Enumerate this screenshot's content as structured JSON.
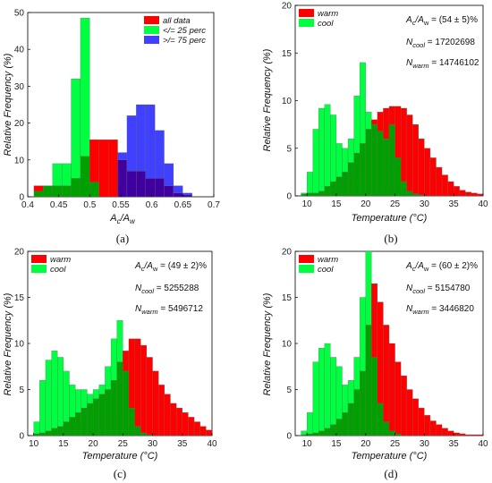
{
  "colors": {
    "red": "#ff0000",
    "green": "#00ff40",
    "blue": "#4040ff",
    "overlap_green_red": "#00a000",
    "overlap_blue_red": "#4000a0",
    "edge": "#666666"
  },
  "chart_data": [
    {
      "id": "a",
      "panel_label": "(a)",
      "type": "bar",
      "chart_subtype": "histogram-overlay",
      "xlabel": "A_c/A_w",
      "xlabel_html": [
        "A",
        "c",
        "/A",
        "w"
      ],
      "ylabel": "Relative Frequency (%)",
      "xlim": [
        0.4,
        0.7
      ],
      "ylim": [
        0,
        50
      ],
      "xticks": [
        0.4,
        0.45,
        0.5,
        0.55,
        0.6,
        0.65,
        0.7
      ],
      "xtick_labels": [
        "0.4",
        "0.45",
        "0.5",
        "0.55",
        "0.6",
        "0.65",
        "0.7"
      ],
      "yticks": [
        0,
        10,
        20,
        30,
        40,
        50
      ],
      "grid": false,
      "legend_position": "top-right",
      "series": [
        {
          "name": "all data",
          "color": "#ff0000",
          "bins": [
            [
              0.41,
              0.425,
              3
            ],
            [
              0.425,
              0.44,
              3
            ],
            [
              0.44,
              0.455,
              3
            ],
            [
              0.455,
              0.47,
              3
            ],
            [
              0.47,
              0.485,
              5
            ],
            [
              0.485,
              0.5,
              11
            ],
            [
              0.5,
              0.515,
              15.5
            ],
            [
              0.515,
              0.53,
              15.5
            ],
            [
              0.53,
              0.545,
              15.5
            ],
            [
              0.545,
              0.56,
              10
            ],
            [
              0.56,
              0.575,
              7
            ],
            [
              0.575,
              0.59,
              7
            ],
            [
              0.59,
              0.605,
              5
            ],
            [
              0.605,
              0.62,
              5
            ],
            [
              0.62,
              0.635,
              3
            ],
            [
              0.635,
              0.65,
              1
            ],
            [
              0.65,
              0.665,
              0.5
            ]
          ]
        },
        {
          "name": "</= 25 perc",
          "color": "#00ff40",
          "bins": [
            [
              0.41,
              0.425,
              1.5
            ],
            [
              0.425,
              0.44,
              3
            ],
            [
              0.44,
              0.455,
              9
            ],
            [
              0.455,
              0.47,
              9
            ],
            [
              0.47,
              0.485,
              32
            ],
            [
              0.485,
              0.5,
              48.5
            ],
            [
              0.5,
              0.515,
              4
            ]
          ]
        },
        {
          "name": ">/= 75 perc",
          "color": "#4040ff",
          "bins": [
            [
              0.545,
              0.56,
              12
            ],
            [
              0.56,
              0.575,
              22
            ],
            [
              0.575,
              0.59,
              25
            ],
            [
              0.59,
              0.605,
              25
            ],
            [
              0.605,
              0.62,
              18
            ],
            [
              0.62,
              0.635,
              9
            ],
            [
              0.635,
              0.65,
              3
            ],
            [
              0.65,
              0.665,
              1
            ]
          ]
        }
      ]
    },
    {
      "id": "b",
      "panel_label": "(b)",
      "type": "bar",
      "chart_subtype": "histogram-overlay",
      "xlabel": "Temperature (°C)",
      "ylabel": "Relative Frequency (%)",
      "xlim": [
        8,
        40
      ],
      "ylim": [
        0,
        20
      ],
      "xticks": [
        10,
        15,
        20,
        25,
        30,
        35,
        40
      ],
      "yticks": [
        0,
        5,
        10,
        15,
        20
      ],
      "grid": false,
      "legend_position": "top-left",
      "annotations": {
        "ratio": "(54 ± 5)%",
        "n_cool": "17202698",
        "n_warm": "14746102"
      },
      "bin_start": 9,
      "bin_width": 1,
      "series": [
        {
          "name": "warm",
          "color": "#ff0000",
          "values": [
            0.2,
            0.3,
            0.3,
            0.5,
            1.0,
            1.5,
            2.0,
            2.5,
            3.5,
            4.5,
            5.5,
            7.0,
            8.0,
            8.8,
            9.2,
            9.4,
            9.4,
            9.2,
            8.5,
            7.5,
            6.0,
            5.0,
            4.0,
            3.0,
            2.2,
            1.5,
            1.0,
            0.6,
            0.4,
            0.3,
            0.2,
            0.1
          ]
        },
        {
          "name": "cool",
          "color": "#00ff40",
          "values": [
            0.3,
            2.5,
            7.0,
            9.2,
            9.6,
            8.5,
            5.5,
            5.0,
            6.0,
            10.5,
            14.0,
            8.8,
            7.5,
            6.8,
            6.0,
            7.5,
            4.0,
            1.5,
            0.5,
            0.2,
            0.1,
            0,
            0,
            0,
            0,
            0,
            0,
            0,
            0,
            0,
            0,
            0
          ]
        }
      ]
    },
    {
      "id": "c",
      "panel_label": "(c)",
      "type": "bar",
      "chart_subtype": "histogram-overlay",
      "xlabel": "Temperature (°C)",
      "ylabel": "Relative Frequency (%)",
      "xlim": [
        9,
        40
      ],
      "ylim": [
        0,
        20
      ],
      "xticks": [
        10,
        15,
        20,
        25,
        30,
        35,
        40
      ],
      "yticks": [
        0,
        5,
        10,
        15,
        20
      ],
      "grid": false,
      "legend_position": "top-left",
      "annotations": {
        "ratio": "(49 ± 2)%",
        "n_cool": "5255288",
        "n_warm": "5496712"
      },
      "bin_start": 10,
      "bin_width": 1,
      "series": [
        {
          "name": "warm",
          "color": "#ff0000",
          "values": [
            0.2,
            0.3,
            0.5,
            0.8,
            1.0,
            1.5,
            2.0,
            2.5,
            3.0,
            3.5,
            4.0,
            4.5,
            5.0,
            6.0,
            8.0,
            9.2,
            10.5,
            10.5,
            9.8,
            8.5,
            7.0,
            5.5,
            4.5,
            3.5,
            3.0,
            2.5,
            2.0,
            1.5,
            1.0,
            0.6,
            0.4,
            0.2
          ]
        },
        {
          "name": "cool",
          "color": "#00ff40",
          "values": [
            1.5,
            6.0,
            8.2,
            9.2,
            8.5,
            7.0,
            5.5,
            5.0,
            5.0,
            4.5,
            5.0,
            5.5,
            7.5,
            10.5,
            12.5,
            7.0,
            3.0,
            1.0,
            0.3,
            0.1,
            0,
            0,
            0,
            0,
            0,
            0,
            0,
            0,
            0,
            0,
            0,
            0
          ]
        }
      ]
    },
    {
      "id": "d",
      "panel_label": "(d)",
      "type": "bar",
      "chart_subtype": "histogram-overlay",
      "xlabel": "Temperature (°C)",
      "ylabel": "Relative Frequency (%)",
      "xlim": [
        8,
        40
      ],
      "ylim": [
        0,
        20
      ],
      "xticks": [
        10,
        15,
        20,
        25,
        30,
        35,
        40
      ],
      "yticks": [
        0,
        5,
        10,
        15,
        20
      ],
      "grid": false,
      "legend_position": "top-left",
      "annotations": {
        "ratio": "(60 ± 2)%",
        "n_cool": "5154780",
        "n_warm": "3446820"
      },
      "bin_start": 9,
      "bin_width": 1,
      "series": [
        {
          "name": "warm",
          "color": "#ff0000",
          "values": [
            0.1,
            0.2,
            0.3,
            0.5,
            0.8,
            1.2,
            1.8,
            2.5,
            3.5,
            5.0,
            7.0,
            12.0,
            16.5,
            14.5,
            12.0,
            10.0,
            8.0,
            6.5,
            5.0,
            4.0,
            3.0,
            2.2,
            1.6,
            1.2,
            0.8,
            0.5,
            0.3,
            0.2,
            0.1,
            0.1,
            0.1,
            0.1
          ]
        },
        {
          "name": "cool",
          "color": "#00ff40",
          "values": [
            0.5,
            2.5,
            8.0,
            9.5,
            10.0,
            8.5,
            7.5,
            5.5,
            6.0,
            8.5,
            15.0,
            20.0,
            8.5,
            3.5,
            1.5,
            0.5,
            0.2,
            0,
            0,
            0,
            0,
            0,
            0,
            0,
            0,
            0,
            0,
            0,
            0,
            0,
            0,
            0
          ]
        }
      ]
    }
  ]
}
